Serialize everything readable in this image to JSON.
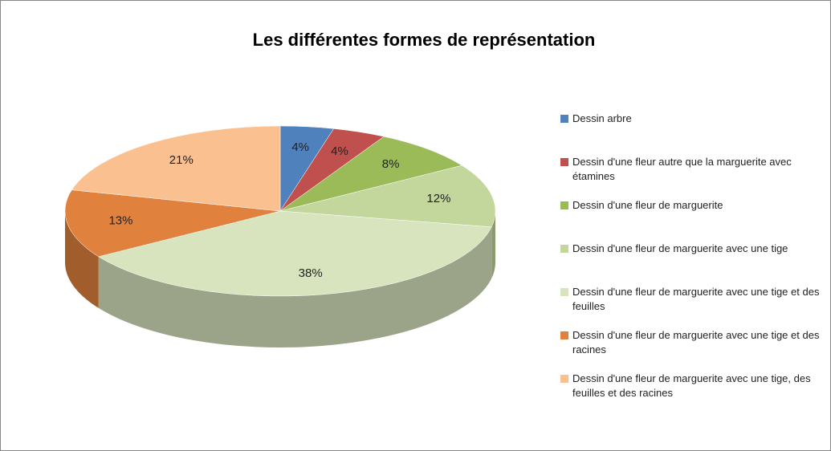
{
  "chart_data": {
    "type": "pie3d",
    "title": "Les différentes formes de représentation",
    "categories": [
      "Dessin arbre",
      "Dessin d'une fleur autre que la marguerite avec étamines",
      "Dessin d'une fleur de marguerite",
      "Dessin d'une fleur de marguerite avec une tige",
      "Dessin d'une fleur de marguerite avec une tige et des feuilles",
      "Dessin d'une fleur de marguerite avec une tige et des racines",
      "Dessin d'une fleur de marguerite avec une tige, des feuilles et des racines"
    ],
    "values": [
      4,
      4,
      8,
      12,
      38,
      13,
      21
    ],
    "value_labels": [
      "4%",
      "4%",
      "8%",
      "12%",
      "38%",
      "13%",
      "21%"
    ],
    "colors": [
      "#4f81bd",
      "#c0504d",
      "#9bbb59",
      "#c3d69b",
      "#d7e4bd",
      "#e0823d",
      "#fac090"
    ],
    "legend": "right"
  }
}
